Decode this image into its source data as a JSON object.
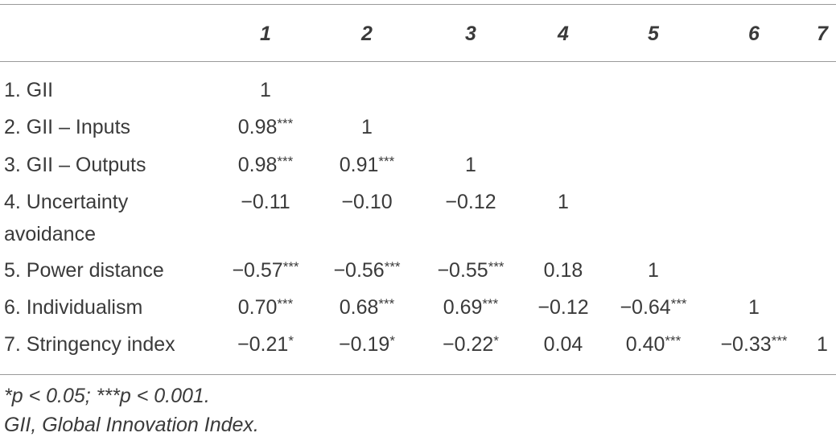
{
  "table": {
    "header": [
      "1",
      "2",
      "3",
      "4",
      "5",
      "6",
      "7"
    ],
    "rows": [
      {
        "label": "1. GII",
        "cells": [
          {
            "r": "1"
          }
        ]
      },
      {
        "label": "2. GII – Inputs",
        "cells": [
          {
            "r": "0.98",
            "sig": "***"
          },
          {
            "r": "1"
          }
        ]
      },
      {
        "label": "3. GII – Outputs",
        "cells": [
          {
            "r": "0.98",
            "sig": "***"
          },
          {
            "r": "0.91",
            "sig": "***"
          },
          {
            "r": "1"
          }
        ]
      },
      {
        "label": "4. Uncertainty avoidance",
        "cells": [
          {
            "r": "−0.11"
          },
          {
            "r": "−0.10"
          },
          {
            "r": "−0.12"
          },
          {
            "r": "1"
          }
        ]
      },
      {
        "label": "5. Power distance",
        "cells": [
          {
            "r": "−0.57",
            "sig": "***"
          },
          {
            "r": "−0.56",
            "sig": "***"
          },
          {
            "r": "−0.55",
            "sig": "***"
          },
          {
            "r": "0.18"
          },
          {
            "r": "1"
          }
        ]
      },
      {
        "label": "6. Individualism",
        "cells": [
          {
            "r": "0.70",
            "sig": "***"
          },
          {
            "r": "0.68",
            "sig": "***"
          },
          {
            "r": "0.69",
            "sig": "***"
          },
          {
            "r": "−0.12"
          },
          {
            "r": "−0.64",
            "sig": "***"
          },
          {
            "r": "1"
          }
        ]
      },
      {
        "label": "7. Stringency index",
        "cells": [
          {
            "r": "−0.21",
            "sig": "*"
          },
          {
            "r": "−0.19",
            "sig": "*"
          },
          {
            "r": "−0.22",
            "sig": "*"
          },
          {
            "r": "0.04"
          },
          {
            "r": "0.40",
            "sig": "***"
          },
          {
            "r": "−0.33",
            "sig": "***"
          },
          {
            "r": "1"
          }
        ]
      }
    ]
  },
  "notes": [
    "*p < 0.05; ***p < 0.001.",
    "GII, Global Innovation Index."
  ]
}
